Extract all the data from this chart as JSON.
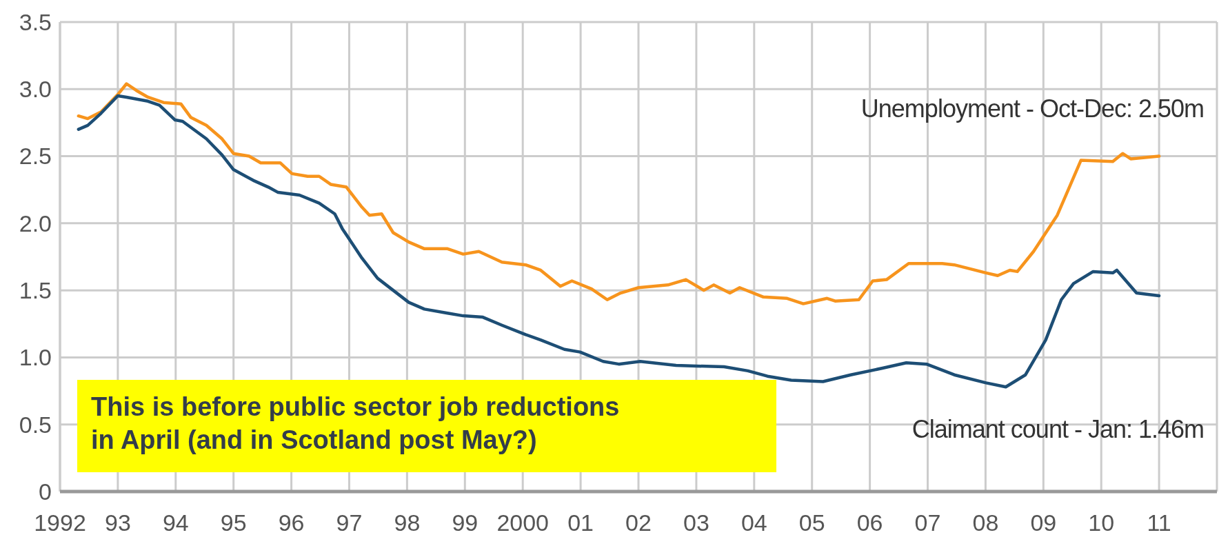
{
  "chart_data": {
    "type": "line",
    "grid": true,
    "xlim": [
      1992,
      2012
    ],
    "ylim": [
      0,
      3.5
    ],
    "yticks": [
      0,
      {
        "value": 0.5,
        "label": "0.5"
      },
      {
        "value": 1,
        "label": "1.0"
      },
      {
        "value": 1.5,
        "label": "1.5"
      },
      {
        "value": 2,
        "label": "2.0"
      },
      {
        "value": 2.5,
        "label": "2.5"
      },
      {
        "value": 3,
        "label": "3.0"
      },
      {
        "value": 3.5,
        "label": "3.5"
      }
    ],
    "xticks": [
      1992,
      {
        "value": 1993,
        "label": "93"
      },
      {
        "value": 1994,
        "label": "94"
      },
      {
        "value": 1995,
        "label": "95"
      },
      {
        "value": 1996,
        "label": "96"
      },
      {
        "value": 1997,
        "label": "97"
      },
      {
        "value": 1998,
        "label": "98"
      },
      {
        "value": 1999,
        "label": "99"
      },
      2000,
      {
        "value": 2001,
        "label": "01"
      },
      {
        "value": 2002,
        "label": "02"
      },
      {
        "value": 2003,
        "label": "03"
      },
      {
        "value": 2004,
        "label": "04"
      },
      {
        "value": 2005,
        "label": "05"
      },
      {
        "value": 2006,
        "label": "06"
      },
      {
        "value": 2007,
        "label": "07"
      },
      {
        "value": 2008,
        "label": "08"
      },
      {
        "value": 2009,
        "label": "09"
      },
      {
        "value": 2010,
        "label": "10"
      },
      {
        "value": 2011,
        "label": "11"
      }
    ],
    "series": [
      {
        "name": "Unemployment - Oct-Dec: 2.50m",
        "color": "#f7941d",
        "x": [
          1992.32,
          1992.48,
          1992.71,
          1993.0,
          1993.15,
          1993.32,
          1993.52,
          1993.79,
          1994.09,
          1994.26,
          1994.53,
          1994.8,
          1995.0,
          1995.27,
          1995.47,
          1995.81,
          1996.01,
          1996.28,
          1996.48,
          1996.68,
          1996.95,
          1997.22,
          1997.35,
          1997.56,
          1997.76,
          1998.03,
          1998.3,
          1998.7,
          1998.97,
          1999.24,
          1999.64,
          2000.05,
          2000.31,
          2000.65,
          2000.85,
          2001.19,
          2001.46,
          2001.69,
          2002.0,
          2002.51,
          2002.82,
          2003.13,
          2003.3,
          2003.58,
          2003.75,
          2004.16,
          2004.57,
          2004.85,
          2005.26,
          2005.4,
          2005.81,
          2006.05,
          2006.29,
          2006.67,
          2007.25,
          2007.46,
          2008.01,
          2008.21,
          2008.42,
          2008.55,
          2008.83,
          2009.24,
          2009.45,
          2009.65,
          2010.2,
          2010.37,
          2010.51,
          2011.0
        ],
        "values": [
          2.8,
          2.78,
          2.83,
          2.96,
          3.04,
          2.99,
          2.94,
          2.9,
          2.89,
          2.79,
          2.73,
          2.63,
          2.52,
          2.5,
          2.45,
          2.45,
          2.37,
          2.35,
          2.35,
          2.29,
          2.27,
          2.12,
          2.06,
          2.07,
          1.93,
          1.86,
          1.81,
          1.81,
          1.77,
          1.79,
          1.71,
          1.69,
          1.65,
          1.53,
          1.57,
          1.51,
          1.43,
          1.48,
          1.52,
          1.54,
          1.58,
          1.5,
          1.54,
          1.48,
          1.52,
          1.45,
          1.44,
          1.4,
          1.44,
          1.42,
          1.43,
          1.57,
          1.58,
          1.7,
          1.7,
          1.69,
          1.63,
          1.61,
          1.65,
          1.64,
          1.79,
          2.06,
          2.27,
          2.47,
          2.46,
          2.52,
          2.48,
          2.5
        ]
      },
      {
        "name": "Claimant count - Jan: 1.46m",
        "color": "#1d4e75",
        "x": [
          1992.32,
          1992.48,
          1992.71,
          1993.0,
          1993.15,
          1993.52,
          1993.72,
          1993.99,
          1994.12,
          1994.53,
          1994.8,
          1995.0,
          1995.34,
          1995.6,
          1995.77,
          1996.14,
          1996.48,
          1996.75,
          1996.88,
          1997.02,
          1997.22,
          1997.49,
          1997.76,
          1998.03,
          1998.3,
          1998.7,
          1998.97,
          1999.31,
          1999.64,
          2000.05,
          2000.31,
          2000.72,
          2000.99,
          2001.39,
          2001.66,
          2002.03,
          2002.65,
          2003.48,
          2003.89,
          2004.23,
          2004.64,
          2005.19,
          2005.67,
          2006.22,
          2006.63,
          2006.98,
          2007.46,
          2008.01,
          2008.35,
          2008.69,
          2009.04,
          2009.31,
          2009.52,
          2009.86,
          2010.2,
          2010.27,
          2010.61,
          2011.0
        ],
        "values": [
          2.7,
          2.73,
          2.82,
          2.95,
          2.94,
          2.91,
          2.88,
          2.77,
          2.76,
          2.63,
          2.51,
          2.4,
          2.32,
          2.27,
          2.23,
          2.21,
          2.15,
          2.07,
          1.96,
          1.87,
          1.74,
          1.59,
          1.5,
          1.41,
          1.36,
          1.33,
          1.31,
          1.3,
          1.24,
          1.17,
          1.13,
          1.06,
          1.04,
          0.97,
          0.95,
          0.97,
          0.94,
          0.93,
          0.9,
          0.86,
          0.83,
          0.82,
          0.87,
          0.92,
          0.96,
          0.95,
          0.87,
          0.81,
          0.78,
          0.87,
          1.13,
          1.43,
          1.55,
          1.64,
          1.63,
          1.65,
          1.48,
          1.46
        ]
      }
    ],
    "annotations": [
      "This is before public sector job reductions in April (and in Scotland post May?)"
    ]
  }
}
